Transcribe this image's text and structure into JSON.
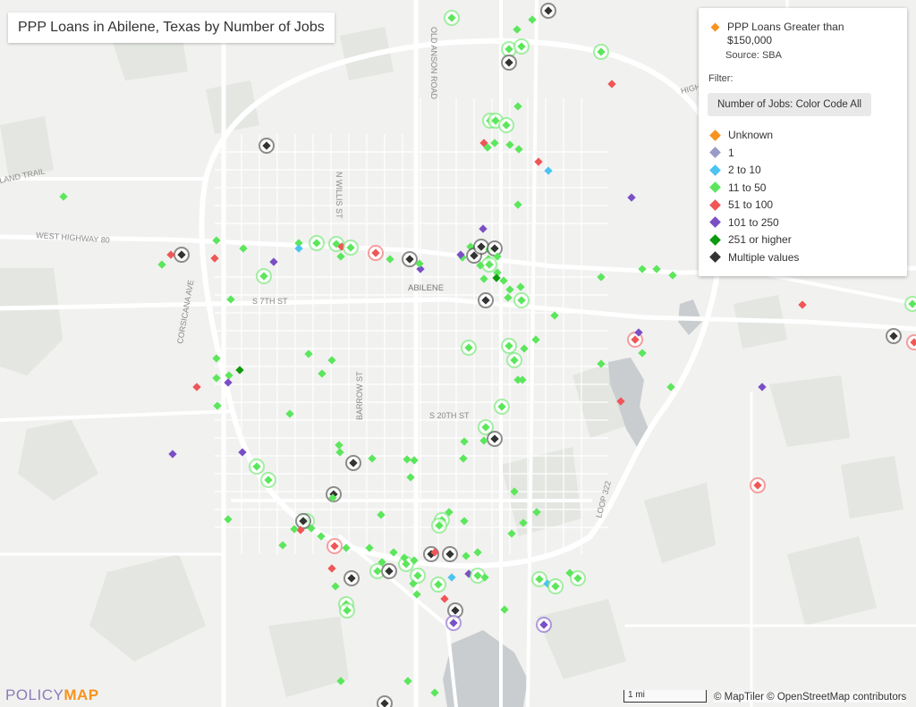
{
  "title": "PPP Loans in Abilene, Texas by Number of Jobs",
  "legend": {
    "header": "PPP Loans Greater than $150,000",
    "source": "Source: SBA",
    "filter_label": "Filter:",
    "filter_button": "Number of Jobs: Color Code All",
    "items": [
      {
        "label": "Unknown",
        "color": "#f7931e"
      },
      {
        "label": "1",
        "color": "#9a9ac8"
      },
      {
        "label": "2 to 10",
        "color": "#4dc3f0"
      },
      {
        "label": "11 to 50",
        "color": "#5ce65c"
      },
      {
        "label": "51 to 100",
        "color": "#ef5656"
      },
      {
        "label": "101 to 250",
        "color": "#7a4fc4"
      },
      {
        "label": "251 or higher",
        "color": "#0d9a0d"
      },
      {
        "label": "Multiple values",
        "color": "#333333"
      }
    ]
  },
  "map_labels": {
    "abilene": "ABILENE",
    "west_highway_80": "WEST HIGHWAY 80",
    "n_willis_st": "N WILLIS ST",
    "s_7th_st": "S 7TH ST",
    "s_20th_st": "S 20TH ST",
    "barrow_st": "BARROW ST",
    "corsicana_ave": "CORSICANA AVE",
    "old_anson_road": "OLD ANSON ROAD",
    "loop_322": "LOOP 322",
    "land_trail": "LAND TRAIL",
    "highway_top": "HIGHWAY"
  },
  "scale_label": "1 mi",
  "attribution": "© MapTiler © OpenStreetMap contributors",
  "logo": {
    "part1": "POLICY",
    "part2": "MAP"
  }
}
